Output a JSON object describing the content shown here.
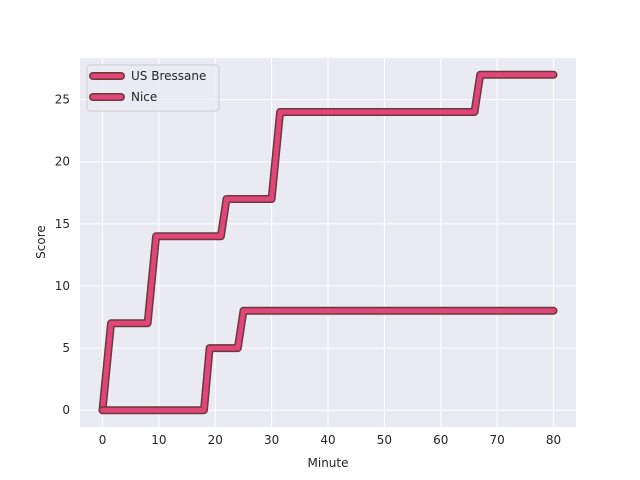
{
  "chart_data": {
    "type": "line",
    "xlabel": "Minute",
    "ylabel": "Score",
    "xlim": [
      -4,
      84
    ],
    "ylim": [
      -1.35,
      28.35
    ],
    "xticks": [
      0,
      10,
      20,
      30,
      40,
      50,
      60,
      70,
      80
    ],
    "yticks": [
      0,
      5,
      10,
      15,
      20,
      25
    ],
    "grid": true,
    "legend_position": "top-left",
    "style": {
      "background": "#eaeaf2",
      "grid_color": "#ffffff",
      "line_color": "#e0457b",
      "line_edge_color": "#6b3a36"
    },
    "series": [
      {
        "name": "US Bressane",
        "x": [
          0,
          1.5,
          8,
          9.5,
          21,
          22,
          30,
          31.5,
          66,
          67,
          80
        ],
        "y": [
          0,
          7,
          7,
          14,
          14,
          17,
          17,
          24,
          24,
          27,
          27
        ]
      },
      {
        "name": "Nice",
        "x": [
          0,
          18,
          19,
          24,
          25,
          80
        ],
        "y": [
          0,
          0,
          5,
          5,
          8,
          8
        ]
      }
    ]
  }
}
